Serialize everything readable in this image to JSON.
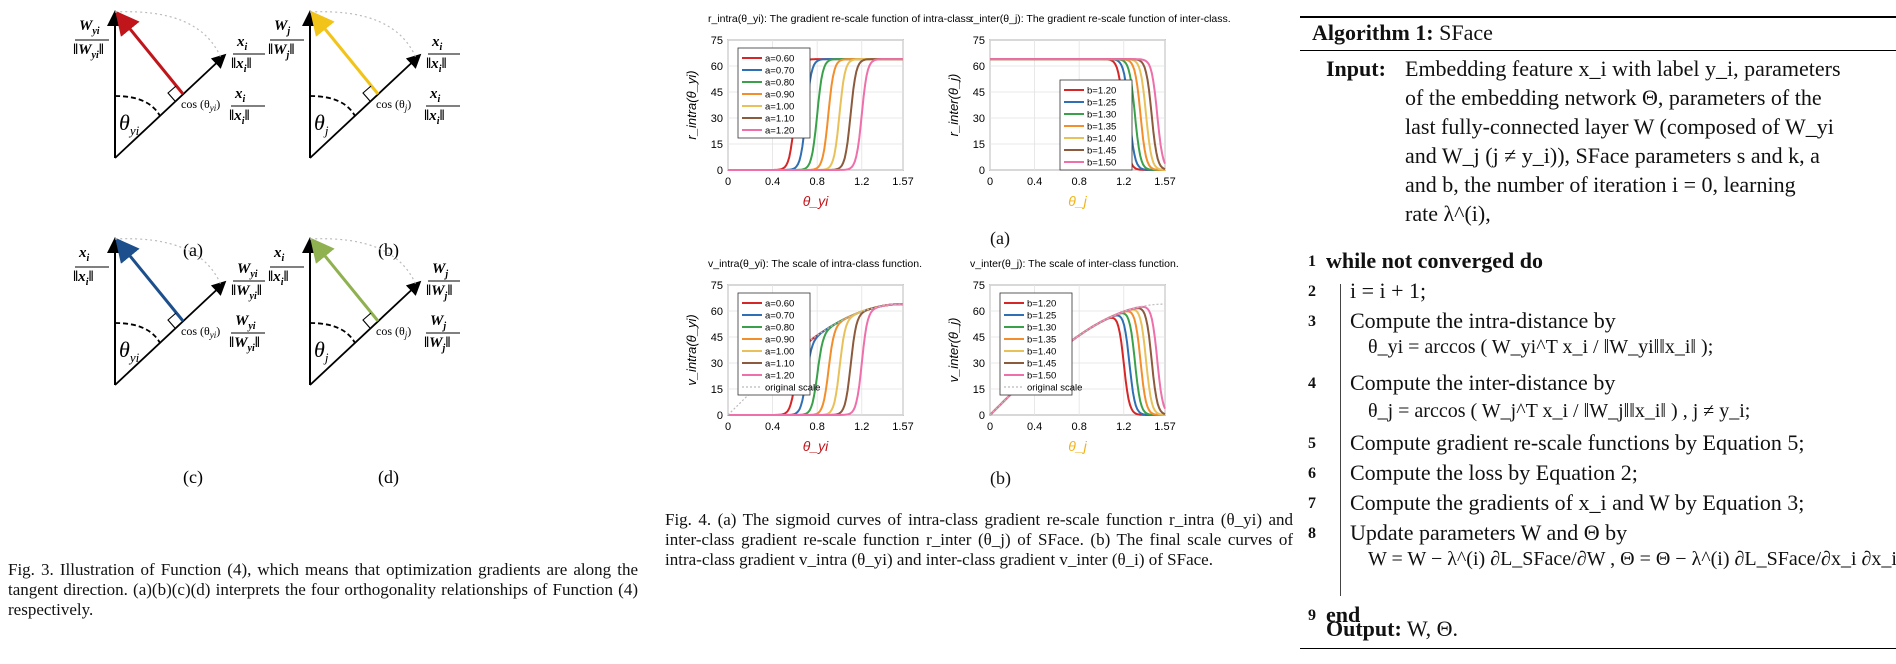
{
  "fig3": {
    "panels": [
      {
        "label": "(a)",
        "arrow_color": "#c0151b",
        "tip_num": "W",
        "tip_sub": "yi",
        "tip_den": "‖W_yi‖",
        "axis_num": "x",
        "axis_sub": "i",
        "cos": "cos (θ",
        "cos_sub": "yi",
        "cos_end": ")",
        "proj_num": "x",
        "proj_sub": "i",
        "angle": "θ",
        "angle_sub": "yi"
      },
      {
        "label": "(b)",
        "arrow_color": "#f2c318",
        "tip_num": "W",
        "tip_sub": "j",
        "axis_num": "x",
        "axis_sub": "i",
        "cos": "cos (θ",
        "cos_sub": "j",
        "cos_end": ")",
        "proj_num": "x",
        "proj_sub": "i",
        "angle": "θ",
        "angle_sub": "j"
      },
      {
        "label": "(c)",
        "arrow_color": "#1c4f8c",
        "tip_num": "x",
        "tip_sub": "i",
        "axis_num": "W",
        "axis_sub": "yi",
        "cos": "cos (θ",
        "cos_sub": "yi",
        "cos_end": ")",
        "proj_num": "W",
        "proj_sub": "yi",
        "angle": "θ",
        "angle_sub": "yi"
      },
      {
        "label": "(d)",
        "arrow_color": "#8fb14f",
        "tip_num": "x",
        "tip_sub": "i",
        "axis_num": "W",
        "axis_sub": "j",
        "cos": "cos (θ",
        "cos_sub": "j",
        "cos_end": ")",
        "proj_num": "W",
        "proj_sub": "j",
        "angle": "θ",
        "angle_sub": "j"
      }
    ],
    "caption": "Fig. 3.  Illustration of Function (4), which means that optimization gradients are along the tangent direction. (a)(b)(c)(d) interprets the four orthogonality relationships of Function (4) respectively."
  },
  "fig4": {
    "sub_a": "(a)",
    "sub_b": "(b)",
    "caption": "Fig. 4.  (a) The sigmoid curves of intra-class gradient re-scale function r_intra (θ_yi) and inter-class gradient re-scale function r_inter (θ_j) of SFace. (b) The final scale curves of intra-class gradient v_intra (θ_yi) and inter-class gradient v_inter (θ_i) of SFace."
  },
  "chart_data": [
    {
      "type": "line",
      "title": "r_intra(θ_yi): The gradient re-scale function of intra-class.",
      "xlabel": "θ_yi",
      "ylabel": "r_intra(θ_yi)",
      "xticks": [
        "0",
        "0.4",
        "0.8",
        "1.2",
        "1.57"
      ],
      "xlim": [
        0,
        1.57
      ],
      "ylim": [
        0,
        75
      ],
      "yticks": [
        0,
        15,
        30,
        45,
        60,
        75
      ],
      "grid": true,
      "legend": "top-left",
      "series": [
        {
          "name": "a=0.60",
          "color": "#d62728",
          "center": 0.6,
          "dir": "up"
        },
        {
          "name": "a=0.70",
          "color": "#2f6fb3",
          "center": 0.7,
          "dir": "up"
        },
        {
          "name": "a=0.80",
          "color": "#3aa14a",
          "center": 0.8,
          "dir": "up"
        },
        {
          "name": "a=0.90",
          "color": "#f28e2b",
          "center": 0.9,
          "dir": "up"
        },
        {
          "name": "a=1.00",
          "color": "#e8c15a",
          "center": 1.0,
          "dir": "up"
        },
        {
          "name": "a=1.10",
          "color": "#8c5a3c",
          "center": 1.1,
          "dir": "up"
        },
        {
          "name": "a=1.20",
          "color": "#ee6fa9",
          "center": 1.2,
          "dir": "up"
        }
      ],
      "max": 64
    },
    {
      "type": "line",
      "title": "r_inter(θ_j): The gradient re-scale function of inter-class.",
      "xlabel": "θ_j",
      "ylabel": "r_inter(θ_j)",
      "xticks": [
        "0",
        "0.4",
        "0.8",
        "1.2",
        "1.57"
      ],
      "xlim": [
        0,
        1.57
      ],
      "ylim": [
        0,
        75
      ],
      "yticks": [
        0,
        15,
        30,
        45,
        60,
        75
      ],
      "grid": true,
      "legend": "center-right",
      "series": [
        {
          "name": "b=1.20",
          "color": "#d62728",
          "center": 1.2,
          "dir": "down"
        },
        {
          "name": "b=1.25",
          "color": "#2f6fb3",
          "center": 1.25,
          "dir": "down"
        },
        {
          "name": "b=1.30",
          "color": "#3aa14a",
          "center": 1.3,
          "dir": "down"
        },
        {
          "name": "b=1.35",
          "color": "#f28e2b",
          "center": 1.35,
          "dir": "down"
        },
        {
          "name": "b=1.40",
          "color": "#e8c15a",
          "center": 1.4,
          "dir": "down"
        },
        {
          "name": "b=1.45",
          "color": "#8c5a3c",
          "center": 1.45,
          "dir": "down"
        },
        {
          "name": "b=1.50",
          "color": "#ee6fa9",
          "center": 1.5,
          "dir": "down"
        }
      ],
      "max": 64
    },
    {
      "type": "line",
      "title": "v_intra(θ_yi): The scale of intra-class function.",
      "xlabel": "θ_yi",
      "ylabel": "v_intra(θ_yi)",
      "xticks": [
        "0",
        "0.4",
        "0.8",
        "1.2",
        "1.57"
      ],
      "xlim": [
        0,
        1.57
      ],
      "ylim": [
        0,
        75
      ],
      "yticks": [
        0,
        15,
        30,
        45,
        60,
        75
      ],
      "grid": true,
      "legend": "top-left",
      "series": [
        {
          "name": "a=0.60",
          "color": "#d62728",
          "center": 0.6,
          "dir": "up",
          "scaled": true
        },
        {
          "name": "a=0.70",
          "color": "#2f6fb3",
          "center": 0.7,
          "dir": "up",
          "scaled": true
        },
        {
          "name": "a=0.80",
          "color": "#3aa14a",
          "center": 0.8,
          "dir": "up",
          "scaled": true
        },
        {
          "name": "a=0.90",
          "color": "#f28e2b",
          "center": 0.9,
          "dir": "up",
          "scaled": true
        },
        {
          "name": "a=1.00",
          "color": "#e8c15a",
          "center": 1.0,
          "dir": "up",
          "scaled": true
        },
        {
          "name": "a=1.10",
          "color": "#8c5a3c",
          "center": 1.1,
          "dir": "up",
          "scaled": true
        },
        {
          "name": "a=1.20",
          "color": "#ee6fa9",
          "center": 1.2,
          "dir": "up",
          "scaled": true
        },
        {
          "name": "original scale",
          "color": "#bbbbbb",
          "dashed": true,
          "original": true
        }
      ],
      "max": 64
    },
    {
      "type": "line",
      "title": "v_inter(θ_j): The scale of inter-class function.",
      "xlabel": "θ_j",
      "ylabel": "v_inter(θ_j)",
      "xticks": [
        "0",
        "0.4",
        "0.8",
        "1.2",
        "1.57"
      ],
      "xlim": [
        0,
        1.57
      ],
      "ylim": [
        0,
        75
      ],
      "yticks": [
        0,
        15,
        30,
        45,
        60,
        75
      ],
      "grid": true,
      "legend": "top-left",
      "series": [
        {
          "name": "b=1.20",
          "color": "#d62728",
          "center": 1.2,
          "dir": "down",
          "scaled": true
        },
        {
          "name": "b=1.25",
          "color": "#2f6fb3",
          "center": 1.25,
          "dir": "down",
          "scaled": true
        },
        {
          "name": "b=1.30",
          "color": "#3aa14a",
          "center": 1.3,
          "dir": "down",
          "scaled": true
        },
        {
          "name": "b=1.35",
          "color": "#f28e2b",
          "center": 1.35,
          "dir": "down",
          "scaled": true
        },
        {
          "name": "b=1.40",
          "color": "#e8c15a",
          "center": 1.4,
          "dir": "down",
          "scaled": true
        },
        {
          "name": "b=1.45",
          "color": "#8c5a3c",
          "center": 1.45,
          "dir": "down",
          "scaled": true
        },
        {
          "name": "b=1.50",
          "color": "#ee6fa9",
          "center": 1.5,
          "dir": "down",
          "scaled": true
        },
        {
          "name": "original scale",
          "color": "#bbbbbb",
          "dashed": true,
          "original": true
        }
      ],
      "max": 64
    }
  ],
  "algorithm": {
    "title_bold": "Algorithm 1:",
    "title_rest": " SFace",
    "input_label": "Input:",
    "input_lines": [
      "Embedding feature x_i with label y_i, parameters",
      "of the embedding network Θ, parameters of the",
      "last fully-connected layer W (composed of W_yi",
      "and W_j (j ≠ y_i)), SFace parameters s and k, a",
      "and b, the number of iteration i = 0, learning",
      "rate λ^(i),"
    ],
    "steps": [
      {
        "n": "1",
        "text": "while not converged do"
      },
      {
        "n": "2",
        "text": "i = i + 1;"
      },
      {
        "n": "3",
        "text": "Compute the intra-distance by"
      },
      {
        "n": "",
        "text": "θ_yi = arccos ( W_yi^T x_i / ‖W_yi‖‖x_i‖ );"
      },
      {
        "n": "4",
        "text": "Compute the inter-distance by"
      },
      {
        "n": "",
        "text": "θ_j = arccos ( W_j^T x_i / ‖W_j‖‖x_i‖ ) ,  j ≠ y_i;"
      },
      {
        "n": "5",
        "text": "Compute gradient re-scale functions by Equation 5;"
      },
      {
        "n": "6",
        "text": "Compute the loss by Equation 2;"
      },
      {
        "n": "7",
        "text": "Compute the gradients of x_i and W by Equation 3;"
      },
      {
        "n": "8",
        "text": "Update parameters W and Θ by"
      },
      {
        "n": "",
        "text": "W = W − λ^(i) ∂L_SFace/∂W ,  Θ = Θ − λ^(i) ∂L_SFace/∂x_i ∂x_i/∂Θ ;"
      },
      {
        "n": "9",
        "text": "end"
      }
    ],
    "output_label": "Output:",
    "output_text": " W, Θ."
  }
}
